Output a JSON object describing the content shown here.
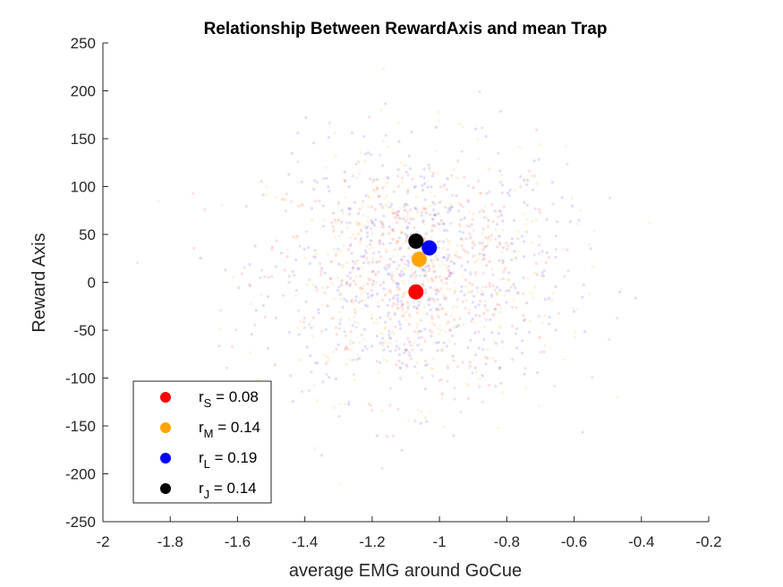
{
  "chart_data": {
    "type": "scatter",
    "title": "Relationship Between RewardAxis and mean Trap",
    "xlabel": "average EMG around GoCue",
    "ylabel": "Reward Axis",
    "xlim": [
      -2,
      -0.2
    ],
    "ylim": [
      -250,
      250
    ],
    "xticks": [
      "-2",
      "-1.8",
      "-1.6",
      "-1.4",
      "-1.2",
      "-1",
      "-0.8",
      "-0.6",
      "-0.4",
      "-0.2"
    ],
    "yticks": [
      "250",
      "200",
      "150",
      "100",
      "50",
      "0",
      "-50",
      "-100",
      "-150",
      "-200",
      "-250"
    ],
    "grid": false,
    "legend_position": "bottom-left",
    "background_cloud": {
      "description_colors": [
        "#ff0000",
        "#ffa500",
        "#0000ff"
      ],
      "center": [
        -1.07,
        10
      ],
      "spread": [
        0.22,
        65
      ]
    },
    "series": [
      {
        "legend_label": "r",
        "subscript": "S",
        "legend_value": " = 0.08",
        "color": "#ff0000",
        "x": -1.07,
        "y": -10
      },
      {
        "legend_label": "r",
        "subscript": "M",
        "legend_value": " = 0.14",
        "color": "#ffa500",
        "x": -1.06,
        "y": 24
      },
      {
        "legend_label": "r",
        "subscript": "L",
        "legend_value": " = 0.19",
        "color": "#0000ff",
        "x": -1.03,
        "y": 36
      },
      {
        "legend_label": "r",
        "subscript": "J",
        "legend_value": " = 0.14",
        "color": "#000000",
        "x": -1.07,
        "y": 43
      }
    ]
  }
}
